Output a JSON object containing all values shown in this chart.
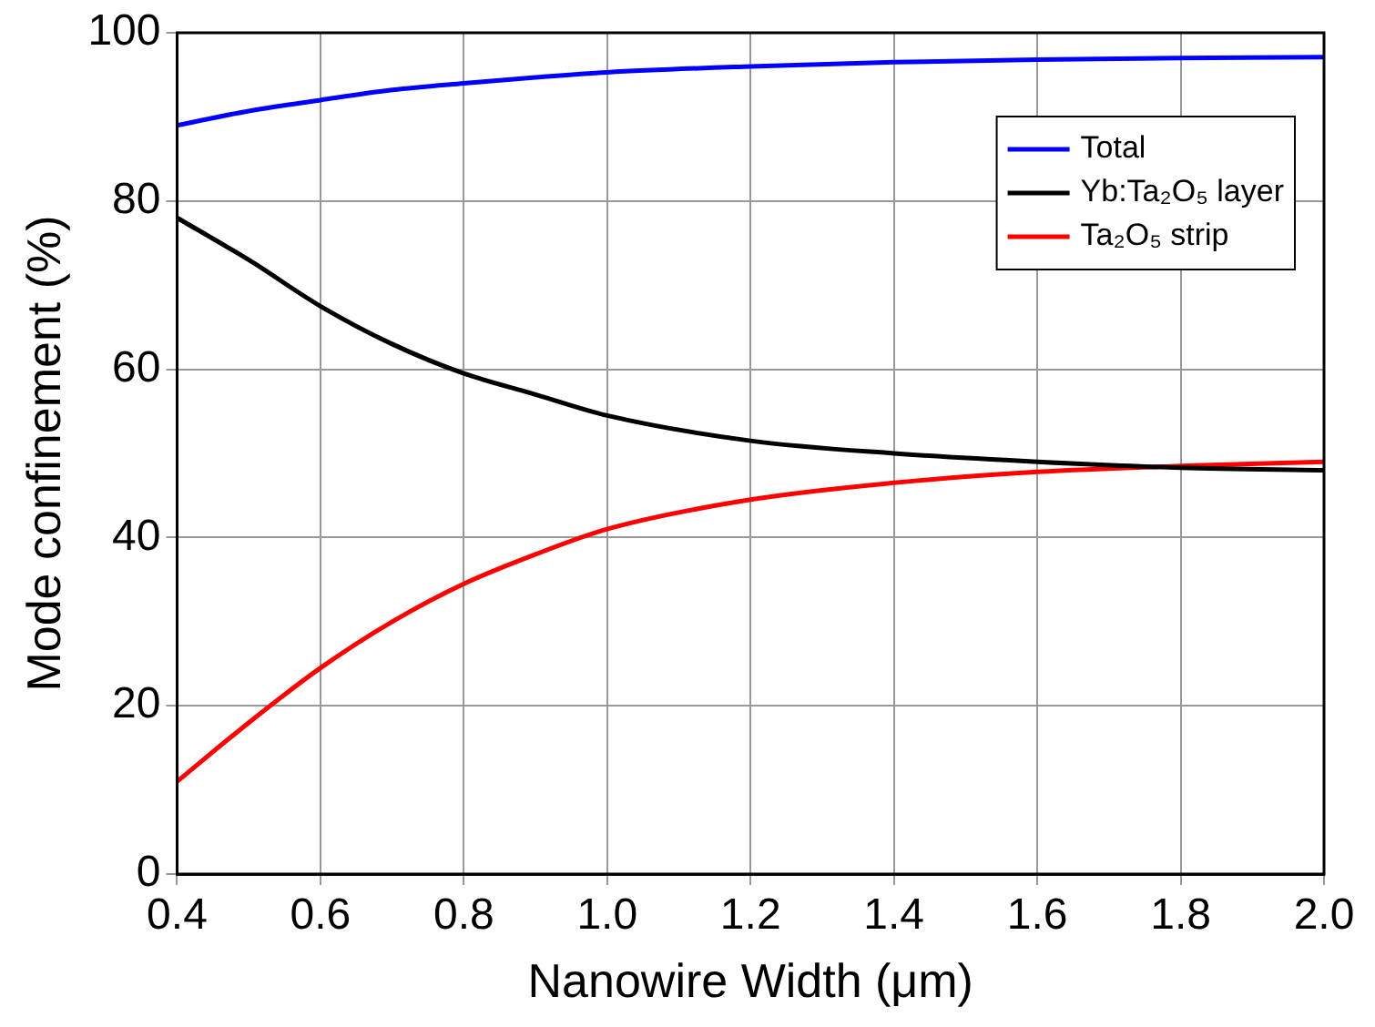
{
  "chart_data": {
    "type": "line",
    "xlabel": "Nanowire Width (μm)",
    "ylabel": "Mode confinement (%)",
    "x": [
      0.4,
      0.5,
      0.6,
      0.7,
      0.8,
      0.9,
      1.0,
      1.2,
      1.4,
      1.6,
      1.8,
      2.0
    ],
    "series": [
      {
        "name": "Total",
        "color": "#0000ff",
        "values": [
          89,
          90.7,
          92,
          93.2,
          94,
          94.7,
          95.3,
          96,
          96.5,
          96.8,
          97,
          97.1
        ]
      },
      {
        "name": "Yb:Ta₂O₅ layer",
        "color": "#000000",
        "values": [
          78,
          73,
          67.5,
          63,
          59.5,
          57,
          54.5,
          51.5,
          50,
          49,
          48.3,
          48
        ]
      },
      {
        "name": "Ta₂O₅ strip",
        "color": "#ff0000",
        "values": [
          11,
          18,
          24.5,
          30,
          34.5,
          38,
          41,
          44.5,
          46.5,
          47.8,
          48.5,
          49
        ]
      }
    ],
    "xlim": [
      0.4,
      2.0
    ],
    "xticks": [
      {
        "value": 0.4,
        "label": "0.4"
      },
      {
        "value": 0.6,
        "label": "0.6"
      },
      {
        "value": 0.8,
        "label": "0.8"
      },
      {
        "value": 1.0,
        "label": "1.0"
      },
      {
        "value": 1.2,
        "label": "1.2"
      },
      {
        "value": 1.4,
        "label": "1.4"
      },
      {
        "value": 1.6,
        "label": "1.6"
      },
      {
        "value": 1.8,
        "label": "1.8"
      },
      {
        "value": 2.0,
        "label": "2.0"
      }
    ],
    "ylim": [
      0,
      100
    ],
    "yticks": [
      0,
      20,
      40,
      60,
      80,
      100
    ],
    "grid": true,
    "legend": "top right",
    "marker": "none",
    "line_style": "solid"
  }
}
